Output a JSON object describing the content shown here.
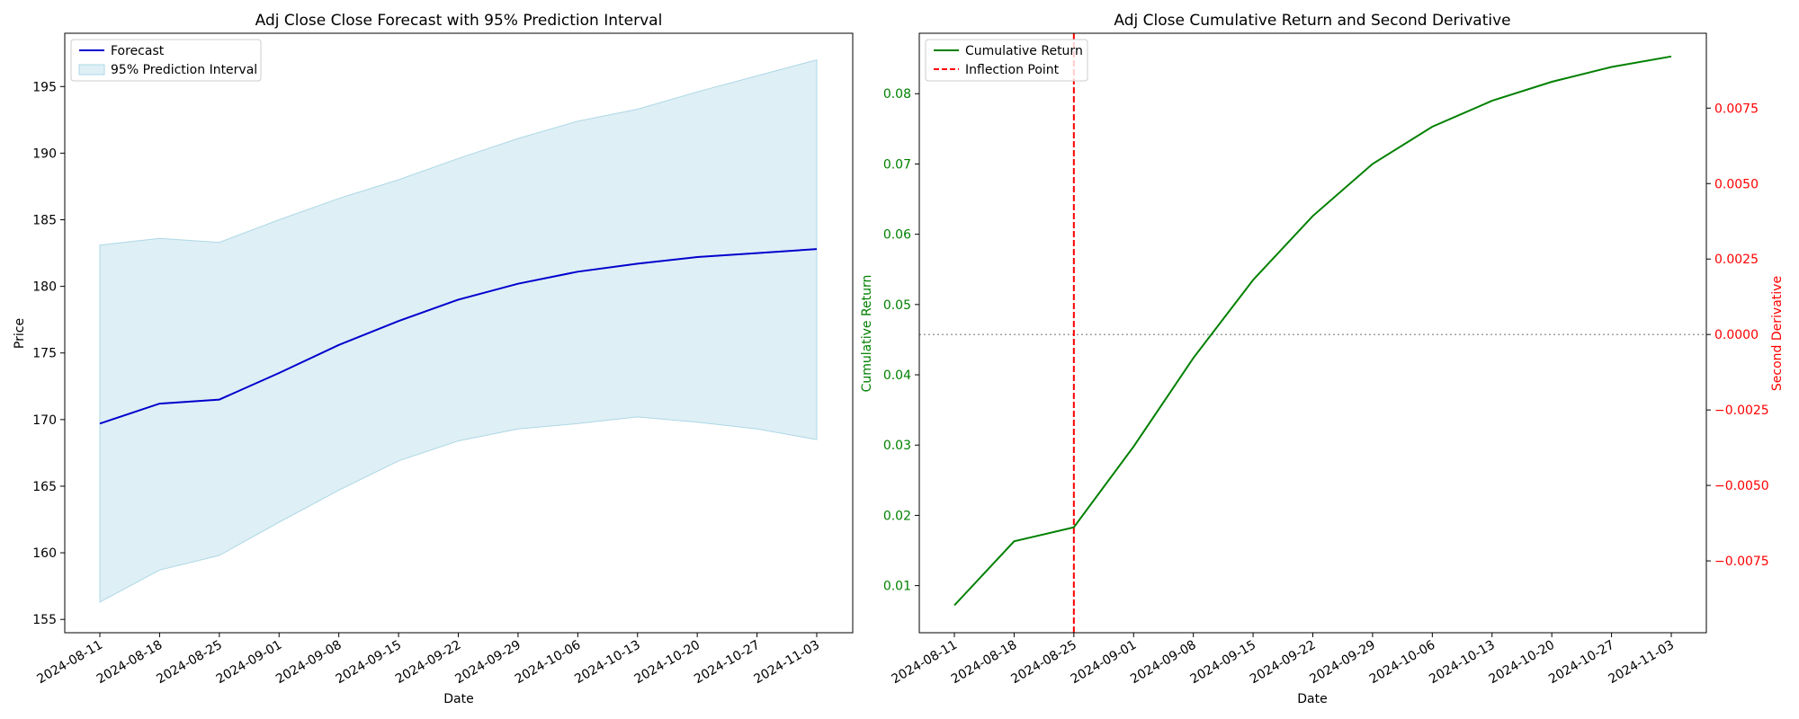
{
  "chart_data": [
    {
      "type": "line",
      "title": "Adj Close Close Forecast with 95% Prediction Interval",
      "xlabel": "Date",
      "ylabel": "Price",
      "ylim": [
        154.0,
        199.0
      ],
      "yticks": [
        155,
        160,
        165,
        170,
        175,
        180,
        185,
        190,
        195
      ],
      "categories": [
        "2024-08-11",
        "2024-08-18",
        "2024-08-25",
        "2024-09-01",
        "2024-09-08",
        "2024-09-15",
        "2024-09-22",
        "2024-09-29",
        "2024-10-06",
        "2024-10-13",
        "2024-10-20",
        "2024-10-27",
        "2024-11-03"
      ],
      "series": [
        {
          "name": "Forecast",
          "color": "#0000cd",
          "values": [
            169.7,
            171.2,
            171.5,
            173.5,
            175.6,
            177.4,
            179.0,
            180.2,
            181.1,
            181.7,
            182.2,
            182.5,
            182.8
          ]
        }
      ],
      "interval": {
        "name": "95% Prediction Interval",
        "color": "#add8e6",
        "lower": [
          156.3,
          158.7,
          159.8,
          162.3,
          164.7,
          166.9,
          168.4,
          169.3,
          169.7,
          170.2,
          169.8,
          169.3,
          168.5
        ],
        "upper": [
          183.1,
          183.6,
          183.3,
          185.0,
          186.6,
          188.0,
          189.6,
          191.1,
          192.4,
          193.3,
          194.6,
          195.8,
          197.0
        ]
      },
      "legend": "top-left",
      "grid": false
    },
    {
      "type": "line",
      "title": "Adj Close Cumulative Return and Second Derivative",
      "xlabel": "Date",
      "ylabel": "Cumulative Return",
      "ylabel_right": "Second Derivative",
      "ylim": [
        0.0033,
        0.0886
      ],
      "yticks": [
        0.01,
        0.02,
        0.03,
        0.04,
        0.05,
        0.06,
        0.07,
        0.08
      ],
      "ytick_labels": [
        "0.01",
        "0.02",
        "0.03",
        "0.04",
        "0.05",
        "0.06",
        "0.07",
        "0.08"
      ],
      "ylim_right": [
        -0.00988,
        0.00998
      ],
      "yticks_right": [
        -0.0075,
        -0.005,
        -0.0025,
        0.0,
        0.0025,
        0.005,
        0.0075
      ],
      "ytick_labels_right": [
        "−0.0075",
        "−0.0050",
        "−0.0025",
        "0.0000",
        "0.0025",
        "0.0050",
        "0.0075"
      ],
      "categories": [
        "2024-08-11",
        "2024-08-18",
        "2024-08-25",
        "2024-09-01",
        "2024-09-08",
        "2024-09-15",
        "2024-09-22",
        "2024-09-29",
        "2024-10-06",
        "2024-10-13",
        "2024-10-20",
        "2024-10-27",
        "2024-11-03"
      ],
      "series": [
        {
          "name": "Cumulative Return",
          "color": "#008000",
          "values": [
            0.0072,
            0.0163,
            0.0183,
            0.0298,
            0.0424,
            0.0535,
            0.0626,
            0.07,
            0.0753,
            0.079,
            0.0817,
            0.0838,
            0.0853
          ]
        }
      ],
      "inflection": {
        "name": "Inflection Point",
        "x": "2024-08-25",
        "color": "#ff0000"
      },
      "zero_line_right": 0.0,
      "left_color": "#008000",
      "right_color": "#ff0000",
      "legend": "top-left",
      "grid": false
    }
  ]
}
